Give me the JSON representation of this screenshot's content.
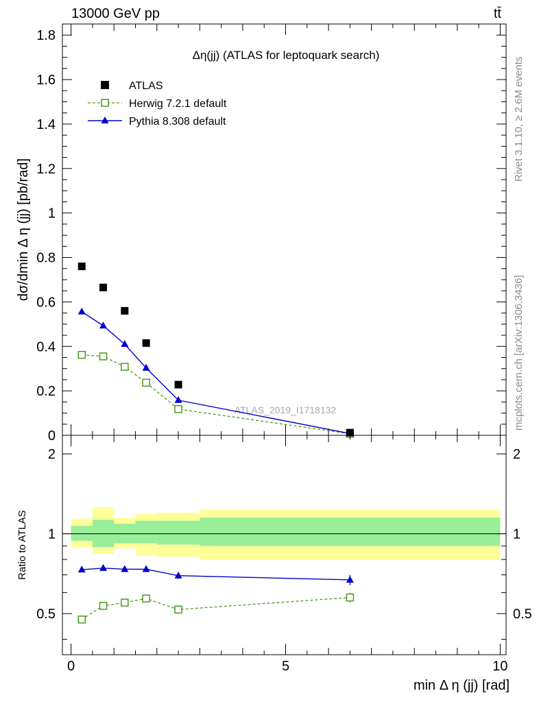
{
  "header": {
    "left": "13000 GeV pp",
    "right": "tt̄"
  },
  "side_labels": {
    "rivet": "Rivet 3.1.10, ≥ 2.6M events",
    "mcplots": "mcplots.cern.ch [arXiv:1306.3436]"
  },
  "watermark": "ATLAS_2019_I1718132",
  "colors": {
    "data": "#000000",
    "herwig": "#4a9a1a",
    "pythia": "#0000cc",
    "band_inner": "#99ee99",
    "band_outer": "#ffff99"
  },
  "chart_data": [
    {
      "type": "scatter",
      "title": "Δη(jj) (ATLAS for leptoquark search)",
      "xlabel": "",
      "ylabel": "dσ/dmin Δ η (jj) [pb/rad]",
      "xlim": [
        0,
        10
      ],
      "ylim": [
        0,
        1.85
      ],
      "yticks": [
        0,
        0.2,
        0.4,
        0.6,
        0.8,
        1,
        1.2,
        1.4,
        1.6,
        1.8
      ],
      "ytick_labels": [
        "0",
        "0.2",
        "0.4",
        "0.6",
        "0.8",
        "1",
        "1.2",
        "1.4",
        "1.6",
        "1.8"
      ],
      "legend_position": "top-left",
      "series": [
        {
          "name": "ATLAS",
          "style": "markers",
          "x": [
            0.25,
            0.75,
            1.25,
            1.75,
            2.5,
            6.5
          ],
          "y": [
            0.76,
            0.665,
            0.56,
            0.415,
            0.228,
            0.012
          ]
        },
        {
          "name": "Herwig 7.2.1 default",
          "style": "dashed-line-open-square",
          "x": [
            0.25,
            0.75,
            1.25,
            1.75,
            2.5,
            6.5
          ],
          "y": [
            0.362,
            0.355,
            0.308,
            0.237,
            0.118,
            0.007
          ],
          "err": [
            0.008,
            0.008,
            0.008,
            0.008,
            0.006,
            0.002
          ]
        },
        {
          "name": "Pythia 8.308 default",
          "style": "solid-line-triangle",
          "x": [
            0.25,
            0.75,
            1.25,
            1.75,
            2.5,
            6.5
          ],
          "y": [
            0.556,
            0.493,
            0.41,
            0.303,
            0.158,
            0.008
          ],
          "err": [
            0.012,
            0.011,
            0.01,
            0.009,
            0.006,
            0.002
          ]
        }
      ]
    },
    {
      "type": "scatter",
      "title": "",
      "xlabel": "min Δ η (jj) [rad]",
      "ylabel": "Ratio to ATLAS",
      "xlim": [
        0,
        10
      ],
      "ylim": [
        0.35,
        2.35
      ],
      "log_y": true,
      "xticks": [
        0,
        5,
        10
      ],
      "xtick_labels": [
        "0",
        "5",
        "10"
      ],
      "yticks": [
        0.5,
        1,
        2
      ],
      "ytick_labels": [
        "0.5",
        "1",
        "2"
      ],
      "reference_line": 1,
      "bands": {
        "edges": [
          0,
          0.5,
          1.0,
          1.5,
          2.0,
          3.0,
          10
        ],
        "inner_low": [
          0.94,
          0.89,
          0.92,
          0.92,
          0.91,
          0.9
        ],
        "inner_high": [
          1.07,
          1.13,
          1.09,
          1.12,
          1.12,
          1.15
        ],
        "outer_low": [
          0.89,
          0.84,
          0.88,
          0.83,
          0.82,
          0.8
        ],
        "outer_high": [
          1.14,
          1.26,
          1.15,
          1.19,
          1.2,
          1.23
        ]
      },
      "series": [
        {
          "name": "Herwig 7.2.1 default",
          "style": "dashed-line-open-square",
          "x": [
            0.25,
            0.75,
            1.25,
            1.75,
            2.5,
            6.5
          ],
          "y": [
            0.475,
            0.535,
            0.55,
            0.57,
            0.518,
            0.575
          ],
          "err": [
            0.01,
            0.012,
            0.012,
            0.015,
            0.013,
            0.025
          ]
        },
        {
          "name": "Pythia 8.308 default",
          "style": "solid-line-triangle",
          "x": [
            0.25,
            0.75,
            1.25,
            1.75,
            2.5,
            6.5
          ],
          "y": [
            0.732,
            0.742,
            0.735,
            0.735,
            0.695,
            0.67
          ],
          "err": [
            0.015,
            0.015,
            0.016,
            0.018,
            0.018,
            0.03
          ]
        }
      ]
    }
  ]
}
